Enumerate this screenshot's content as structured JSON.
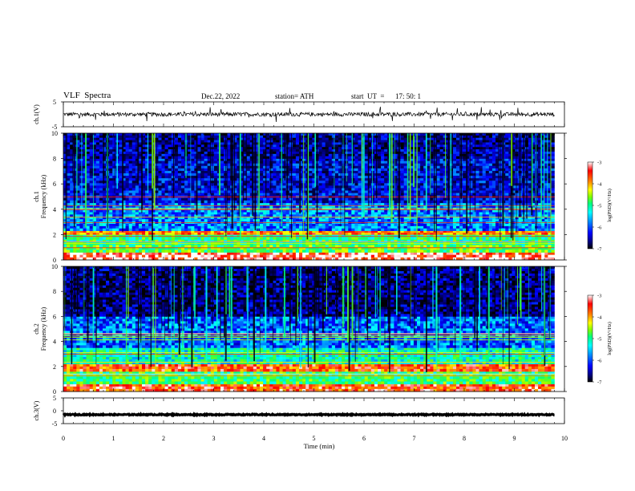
{
  "header": {
    "title": "VLF  Spectra",
    "date": "Dec.22, 2022",
    "station": "station= ATH",
    "start_label": "start  UT  =",
    "start_time": "17: 50: 1"
  },
  "colors": {
    "colormap": [
      "#000000",
      "#00007f",
      "#0000ff",
      "#0080ff",
      "#00ffff",
      "#00ff80",
      "#80ff00",
      "#ffff00",
      "#ff8000",
      "#ff0000",
      "#ffffff"
    ]
  },
  "chart_data": [
    {
      "type": "line",
      "id": "ch1_waveform",
      "ylabel": "ch.1(V)",
      "ylim": [
        -5,
        5
      ],
      "yticks": [
        "5",
        "-5"
      ],
      "x_range_min": [
        0,
        9.8
      ],
      "description_values": {
        "mean_v": 0,
        "typical_amplitude_v": 0.8,
        "spike_amplitude_v": 2.5
      }
    },
    {
      "type": "heatmap",
      "id": "ch1_spectrogram",
      "ylabel": "ch.1\nFrequency (kHz)",
      "ylabel_lines": [
        "ch.1",
        "Frequency  (kHz)"
      ],
      "ylim": [
        0,
        10
      ],
      "yticks": [
        "0",
        "2",
        "4",
        "6",
        "8",
        "10"
      ],
      "x_range_min": [
        0,
        9.8
      ],
      "colorbar": {
        "label": "log(PSD)(V²/Hz)",
        "ticks": [
          "-3",
          "-4",
          "-5",
          "-6",
          "-7"
        ],
        "range": [
          -7,
          -3
        ]
      },
      "bands_khz": [
        {
          "from": 0.0,
          "to": 0.6,
          "level": -3.2
        },
        {
          "from": 0.6,
          "to": 1.2,
          "level": -4.8
        },
        {
          "from": 1.2,
          "to": 2.0,
          "level": -5.0
        },
        {
          "from": 2.0,
          "to": 2.3,
          "level": -3.8
        },
        {
          "from": 2.3,
          "to": 4.5,
          "level": -5.8
        },
        {
          "from": 4.5,
          "to": 8.0,
          "level": -6.3
        },
        {
          "from": 8.0,
          "to": 10.0,
          "level": -6.5
        }
      ]
    },
    {
      "type": "heatmap",
      "id": "ch2_spectrogram",
      "ylabel": "ch.2\nFrequency (kHz)",
      "ylabel_lines": [
        "ch.2",
        "Frequency  (kHz)"
      ],
      "ylim": [
        0,
        10
      ],
      "yticks": [
        "0",
        "2",
        "4",
        "6",
        "8",
        "10"
      ],
      "x_range_min": [
        0,
        9.8
      ],
      "colorbar": {
        "label": "log(PSD)(V²/Hz)",
        "ticks": [
          "-3",
          "-4",
          "-5",
          "-6",
          "-7"
        ],
        "range": [
          -7,
          -3
        ]
      },
      "bands_khz": [
        {
          "from": 0.0,
          "to": 0.6,
          "level": -3.5
        },
        {
          "from": 0.6,
          "to": 1.6,
          "level": -4.9
        },
        {
          "from": 1.6,
          "to": 2.2,
          "level": -3.6
        },
        {
          "from": 2.2,
          "to": 3.5,
          "level": -5.2
        },
        {
          "from": 3.5,
          "to": 6.0,
          "level": -5.9
        },
        {
          "from": 6.0,
          "to": 10.0,
          "level": -6.6
        }
      ]
    },
    {
      "type": "line",
      "id": "ch3_waveform",
      "ylabel": "ch.3(V)",
      "ylim": [
        -5,
        5
      ],
      "yticks": [
        "5",
        "0",
        "-5"
      ],
      "x_range_min": [
        0,
        9.8
      ],
      "description_values": {
        "mean_v": -1.5,
        "typical_amplitude_v": 0.2
      }
    }
  ],
  "xaxis": {
    "label": "Time  (min)",
    "ticks": [
      "0",
      "1",
      "2",
      "3",
      "4",
      "5",
      "6",
      "7",
      "8",
      "9",
      "10"
    ],
    "range": [
      0,
      10
    ]
  }
}
